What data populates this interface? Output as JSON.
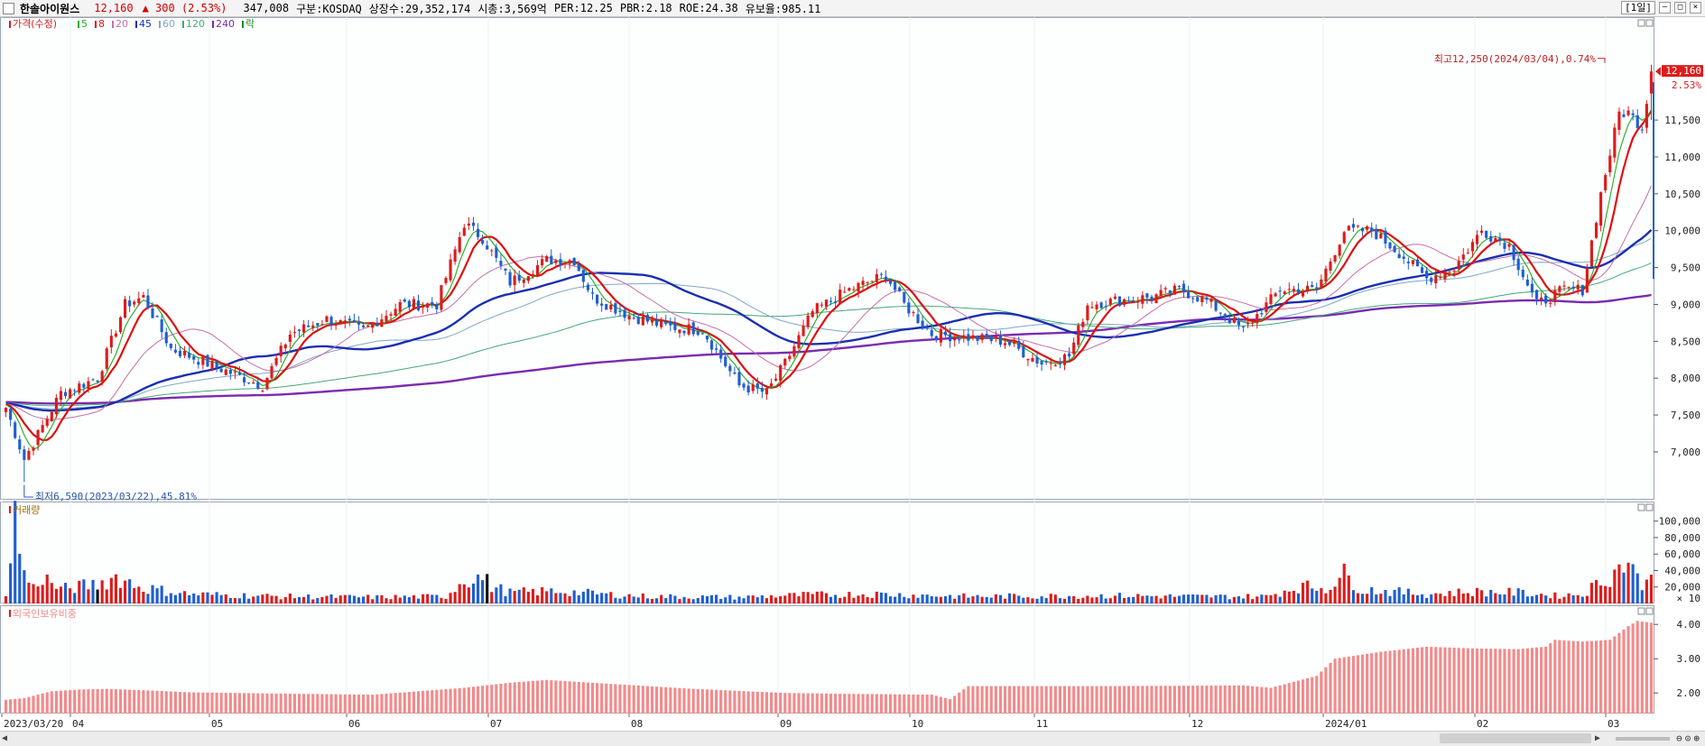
{
  "header": {
    "name": "한솔아이원스",
    "price": "12,160",
    "change": "▲ 300 (2.53%)",
    "volume": "347,008",
    "market": "구분:KOSDAQ",
    "shares": "상장수:29,352,174",
    "mcap": "시총:3,569억",
    "per": "PER:12.25",
    "pbr": "PBR:2.18",
    "roe": "ROE:24.38",
    "reserve": "유보율:985.11",
    "period": "[1일]"
  },
  "legend": {
    "price_label": "가격(수정)",
    "ma_labels": [
      "5",
      "8",
      "20",
      "45",
      "60",
      "120",
      "240"
    ],
    "drop_label": "락",
    "volume_label": "거래량",
    "foreign_label": "외국인보유비중"
  },
  "annotations": {
    "max": "최고12,250(2024/03/04),0.74%",
    "min": "최저6,590(2023/03/22),45.81%",
    "current_price": "12,160",
    "current_pct": "2.53%",
    "volume_unit": "× 10"
  },
  "colors": {
    "up": "#dd1c1c",
    "down": "#1f5fd0",
    "ma5": "#22aa22",
    "ma8": "#dd1010",
    "ma20": "#c66fa8",
    "ma45": "#1a2fb0",
    "ma60": "#7fa8c8",
    "ma120": "#44aa77",
    "ma240": "#7a2bb0",
    "foreign": "#f28b8b"
  },
  "chart_data": [
    {
      "type": "candlestick",
      "title": "가격(수정)",
      "ylim": [
        6400,
        12700
      ],
      "y_ticks": [
        "7,000",
        "7,500",
        "8,000",
        "8,500",
        "9,000",
        "9,500",
        "10,000",
        "10,500",
        "11,000",
        "11,500"
      ],
      "x_ticks": [
        "2023/03/20",
        "04",
        "05",
        "06",
        "07",
        "08",
        "09",
        "10",
        "11",
        "12",
        "2024/01",
        "02",
        "03"
      ],
      "anchors": [
        [
          0,
          7600
        ],
        [
          4,
          6900
        ],
        [
          12,
          7800
        ],
        [
          20,
          8000
        ],
        [
          26,
          9000
        ],
        [
          30,
          9100
        ],
        [
          36,
          8400
        ],
        [
          44,
          8200
        ],
        [
          50,
          8050
        ],
        [
          56,
          7900
        ],
        [
          62,
          8600
        ],
        [
          70,
          8800
        ],
        [
          78,
          8650
        ],
        [
          86,
          9000
        ],
        [
          94,
          9000
        ],
        [
          100,
          10100
        ],
        [
          104,
          9900
        ],
        [
          110,
          9300
        ],
        [
          118,
          9600
        ],
        [
          124,
          9600
        ],
        [
          128,
          9100
        ],
        [
          136,
          8850
        ],
        [
          144,
          8700
        ],
        [
          152,
          8650
        ],
        [
          160,
          7900
        ],
        [
          166,
          7800
        ],
        [
          170,
          8200
        ],
        [
          176,
          8900
        ],
        [
          184,
          9200
        ],
        [
          192,
          9400
        ],
        [
          196,
          9000
        ],
        [
          202,
          8600
        ],
        [
          210,
          8550
        ],
        [
          218,
          8500
        ],
        [
          226,
          8200
        ],
        [
          232,
          8300
        ],
        [
          236,
          9000
        ],
        [
          242,
          9050
        ],
        [
          250,
          9100
        ],
        [
          256,
          9200
        ],
        [
          262,
          9050
        ],
        [
          270,
          8650
        ],
        [
          278,
          9200
        ],
        [
          286,
          9200
        ],
        [
          292,
          10000
        ],
        [
          298,
          10000
        ],
        [
          304,
          9700
        ],
        [
          310,
          9350
        ],
        [
          316,
          9500
        ],
        [
          322,
          10000
        ],
        [
          328,
          9800
        ],
        [
          334,
          9000
        ],
        [
          340,
          9200
        ],
        [
          344,
          9200
        ],
        [
          348,
          10500
        ],
        [
          352,
          11600
        ],
        [
          354,
          11600
        ],
        [
          357,
          11400
        ],
        [
          359,
          12160
        ]
      ],
      "last_candle": {
        "open": 11860,
        "high": 12250,
        "low": 11500,
        "close": 12160
      },
      "max": {
        "value": 12250,
        "date": "2024/03/04"
      },
      "min": {
        "value": 6590,
        "date": "2023/03/22"
      },
      "moving_averages": [
        "5",
        "8",
        "20",
        "45",
        "60",
        "120",
        "240"
      ]
    },
    {
      "type": "bar",
      "title": "거래량",
      "ylim": [
        0,
        115000
      ],
      "y_ticks": [
        "20,000",
        "40,000",
        "60,000",
        "80,000",
        "100,000"
      ],
      "unit": "× 10",
      "anchors": [
        [
          0,
          15000
        ],
        [
          2,
          108000
        ],
        [
          4,
          38000
        ],
        [
          6,
          20000
        ],
        [
          8,
          35000
        ],
        [
          10,
          25000
        ],
        [
          12,
          18000
        ],
        [
          20,
          25000
        ],
        [
          24,
          34000
        ],
        [
          30,
          20000
        ],
        [
          40,
          12000
        ],
        [
          60,
          9000
        ],
        [
          80,
          8000
        ],
        [
          96,
          9000
        ],
        [
          100,
          32000
        ],
        [
          104,
          33000
        ],
        [
          106,
          22000
        ],
        [
          110,
          14000
        ],
        [
          120,
          16000
        ],
        [
          130,
          12000
        ],
        [
          140,
          9000
        ],
        [
          160,
          8000
        ],
        [
          175,
          11000
        ],
        [
          190,
          12000
        ],
        [
          210,
          9000
        ],
        [
          240,
          10000
        ],
        [
          260,
          9000
        ],
        [
          275,
          9000
        ],
        [
          282,
          22000
        ],
        [
          288,
          20000
        ],
        [
          292,
          37000
        ],
        [
          296,
          18000
        ],
        [
          310,
          12000
        ],
        [
          320,
          15000
        ],
        [
          330,
          14000
        ],
        [
          338,
          10000
        ],
        [
          344,
          12000
        ],
        [
          348,
          28000
        ],
        [
          351,
          40000
        ],
        [
          354,
          58000
        ],
        [
          356,
          30000
        ],
        [
          358,
          25000
        ],
        [
          359,
          35000
        ]
      ]
    },
    {
      "type": "bar",
      "title": "외국인보유비중",
      "ylim": [
        1.4,
        4.4
      ],
      "y_ticks": [
        "2.00",
        "3.00",
        "4.00"
      ],
      "anchors": [
        [
          0,
          1.8
        ],
        [
          4,
          1.85
        ],
        [
          10,
          2.05
        ],
        [
          16,
          2.1
        ],
        [
          22,
          2.12
        ],
        [
          30,
          2.08
        ],
        [
          40,
          2.02
        ],
        [
          60,
          1.98
        ],
        [
          80,
          1.95
        ],
        [
          100,
          2.15
        ],
        [
          110,
          2.3
        ],
        [
          118,
          2.38
        ],
        [
          130,
          2.28
        ],
        [
          150,
          2.12
        ],
        [
          170,
          2.0
        ],
        [
          180,
          1.98
        ],
        [
          202,
          1.95
        ],
        [
          206,
          1.82
        ],
        [
          210,
          2.2
        ],
        [
          240,
          2.2
        ],
        [
          270,
          2.22
        ],
        [
          276,
          2.15
        ],
        [
          286,
          2.5
        ],
        [
          290,
          3.0
        ],
        [
          300,
          3.2
        ],
        [
          310,
          3.35
        ],
        [
          320,
          3.3
        ],
        [
          330,
          3.28
        ],
        [
          336,
          3.35
        ],
        [
          338,
          3.55
        ],
        [
          344,
          3.5
        ],
        [
          350,
          3.55
        ],
        [
          354,
          3.95
        ],
        [
          356,
          4.1
        ],
        [
          359,
          4.05
        ]
      ]
    }
  ]
}
